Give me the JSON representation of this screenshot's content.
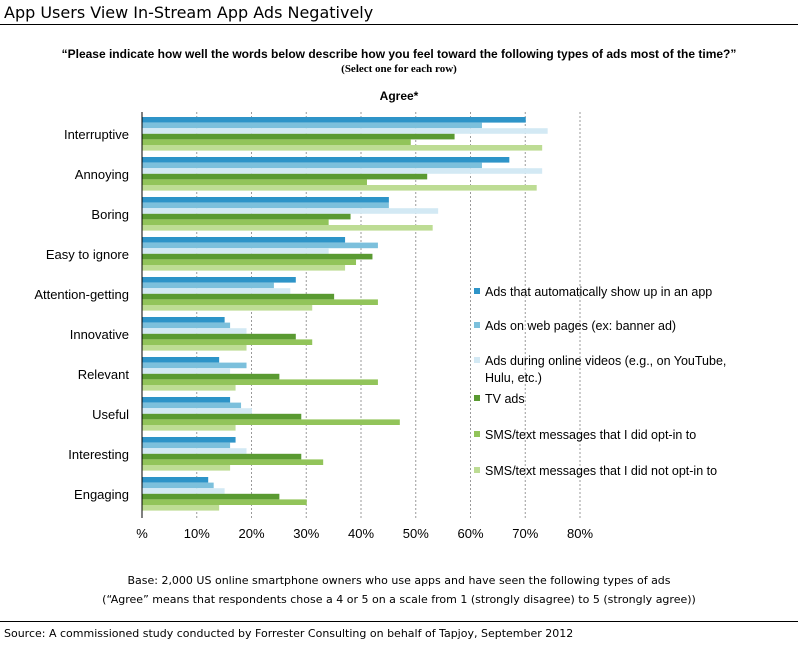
{
  "page": {
    "title": "App Users View In-Stream App Ads Negatively",
    "question": "“Please indicate how well the words below describe how you feel toward the following types of ads most of the time?”",
    "instruction": "(Select one for each row)",
    "subtitle": "Agree*",
    "note1": "Base: 2,000 US online smartphone owners who use apps and have seen the following types of ads",
    "note2": "(“Agree” means that respondents chose a 4 or 5 on a scale from 1 (strongly disagree) to 5 (strongly agree))",
    "source": "Source: A commissioned study conducted by Forrester Consulting on behalf of Tapjoy, September 2012"
  },
  "chart_data": {
    "type": "bar",
    "orientation": "horizontal",
    "title": "Agree*",
    "categories": [
      "Interruptive",
      "Annoying",
      "Boring",
      "Easy to ignore",
      "Attention-getting",
      "Innovative",
      "Relevant",
      "Useful",
      "Interesting",
      "Engaging"
    ],
    "xlim": [
      0,
      80
    ],
    "x_ticks": [
      "%",
      "10%",
      "20%",
      "30%",
      "40%",
      "50%",
      "60%",
      "70%",
      "80%"
    ],
    "grid": "vertical dashed",
    "legend_position": "right",
    "series": [
      {
        "name": "Ads that automatically show up in an app",
        "color": "#2e94c8",
        "values": [
          70,
          67,
          45,
          37,
          28,
          15,
          14,
          16,
          17,
          12
        ]
      },
      {
        "name": "Ads on web pages (ex: banner ad)",
        "color": "#7cc0dc",
        "values": [
          62,
          62,
          45,
          43,
          24,
          16,
          19,
          18,
          16,
          13
        ]
      },
      {
        "name": "Ads during online videos (e.g., on YouTube, Hulu, etc.)",
        "color": "#d3e9f4",
        "values": [
          74,
          73,
          54,
          34,
          27,
          19,
          16,
          20,
          19,
          15
        ]
      },
      {
        "name": "TV ads",
        "color": "#5a9a32",
        "values": [
          57,
          52,
          38,
          42,
          35,
          28,
          25,
          29,
          29,
          25
        ]
      },
      {
        "name": "SMS/text messages that I did opt-in to",
        "color": "#92c45a",
        "values": [
          49,
          41,
          34,
          39,
          43,
          31,
          43,
          47,
          33,
          30
        ]
      },
      {
        "name": "SMS/text messages that I did not opt-in to",
        "color": "#bddc94",
        "values": [
          73,
          72,
          53,
          37,
          31,
          19,
          17,
          17,
          16,
          14
        ]
      }
    ]
  }
}
